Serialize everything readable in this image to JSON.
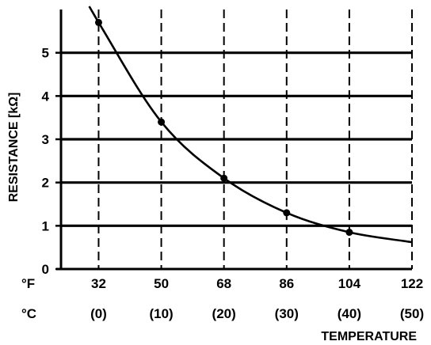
{
  "chart_data": {
    "type": "line",
    "xlabel": "TEMPERATURE",
    "ylabel": "RESISTANCE [kΩ]",
    "unit_f": "°F",
    "unit_c": "°C",
    "x_ticks_f": [
      "32",
      "50",
      "68",
      "86",
      "104",
      "122"
    ],
    "x_ticks_c": [
      "(0)",
      "(10)",
      "(20)",
      "(30)",
      "(40)",
      "(50)"
    ],
    "y_ticks": [
      "0",
      "1",
      "2",
      "3",
      "4",
      "5"
    ],
    "xlim_c": [
      -6,
      50
    ],
    "ylim": [
      0,
      6.0
    ],
    "grid": true,
    "colors": {
      "line": "#000000",
      "grid": "#000000",
      "background": "#ffffff"
    },
    "series": [
      {
        "x_c": [
          0,
          10,
          20,
          30,
          40
        ],
        "y": [
          5.7,
          3.4,
          2.1,
          1.3,
          0.85
        ]
      }
    ],
    "curve_extent_c": [
      -1.5,
      50
    ],
    "curve_end_y": 0.62
  }
}
